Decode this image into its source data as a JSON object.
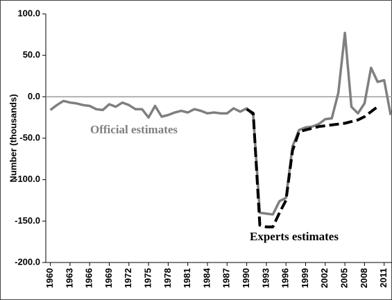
{
  "chart_data": {
    "type": "line",
    "y_label": "Number (thousands)",
    "x": [
      1960,
      1961,
      1962,
      1963,
      1964,
      1965,
      1966,
      1967,
      1968,
      1969,
      1970,
      1971,
      1972,
      1973,
      1974,
      1975,
      1976,
      1977,
      1978,
      1979,
      1980,
      1981,
      1982,
      1983,
      1984,
      1985,
      1986,
      1987,
      1988,
      1989,
      1990,
      1991,
      1992,
      1993,
      1994,
      1995,
      1996,
      1997,
      1998,
      1999,
      2000,
      2001,
      2002,
      2003,
      2004,
      2005,
      2006,
      2007,
      2008,
      2009,
      2010,
      2011,
      2012
    ],
    "series": [
      {
        "name": "Official estimates",
        "color": "#7f7f7f",
        "dash": false,
        "values": [
          -16,
          -10,
          -5,
          -7,
          -8,
          -10,
          -11,
          -15,
          -16,
          -9,
          -12,
          -7,
          -10,
          -15,
          -15,
          -25,
          -11,
          -24,
          -22,
          -19,
          -17,
          -19,
          -15,
          -17,
          -20,
          -19,
          -20,
          -20,
          -14,
          -18,
          -14,
          -22,
          -140,
          -141,
          -142,
          -126,
          -122,
          -60,
          -40,
          -37,
          -36,
          -33,
          -27,
          -26,
          5,
          77,
          -12,
          -20,
          -8,
          35,
          18,
          20,
          -22
        ]
      },
      {
        "name": "Experts estimates",
        "color": "#000000",
        "dash": true,
        "values": [
          null,
          null,
          null,
          null,
          null,
          null,
          null,
          null,
          null,
          null,
          null,
          null,
          null,
          null,
          null,
          null,
          null,
          null,
          null,
          null,
          null,
          null,
          null,
          null,
          null,
          null,
          null,
          null,
          null,
          null,
          -15,
          -20,
          -155,
          -157,
          -157,
          -140,
          -125,
          -65,
          -42,
          -40,
          -38,
          -36,
          -35,
          -34,
          -33,
          -32,
          -30,
          -28,
          -24,
          -18,
          -12,
          null,
          null
        ]
      }
    ],
    "xlim": [
      1959.3,
      2012.2
    ],
    "xticks": [
      1960,
      1963,
      1966,
      1969,
      1972,
      1975,
      1978,
      1981,
      1984,
      1987,
      1990,
      1993,
      1996,
      1999,
      2002,
      2005,
      2008,
      2011
    ],
    "ylim": [
      -200,
      100
    ],
    "yticks": [
      {
        "value": -200,
        "label": "-200.0"
      },
      {
        "value": -150,
        "label": "-150.0"
      },
      {
        "value": -100,
        "label": "-100.0"
      },
      {
        "value": -50,
        "label": "-50.0"
      },
      {
        "value": 0,
        "label": "0.0"
      },
      {
        "value": 50,
        "label": "50.0"
      },
      {
        "value": 100,
        "label": "100.0"
      }
    ],
    "zero_line": true
  }
}
